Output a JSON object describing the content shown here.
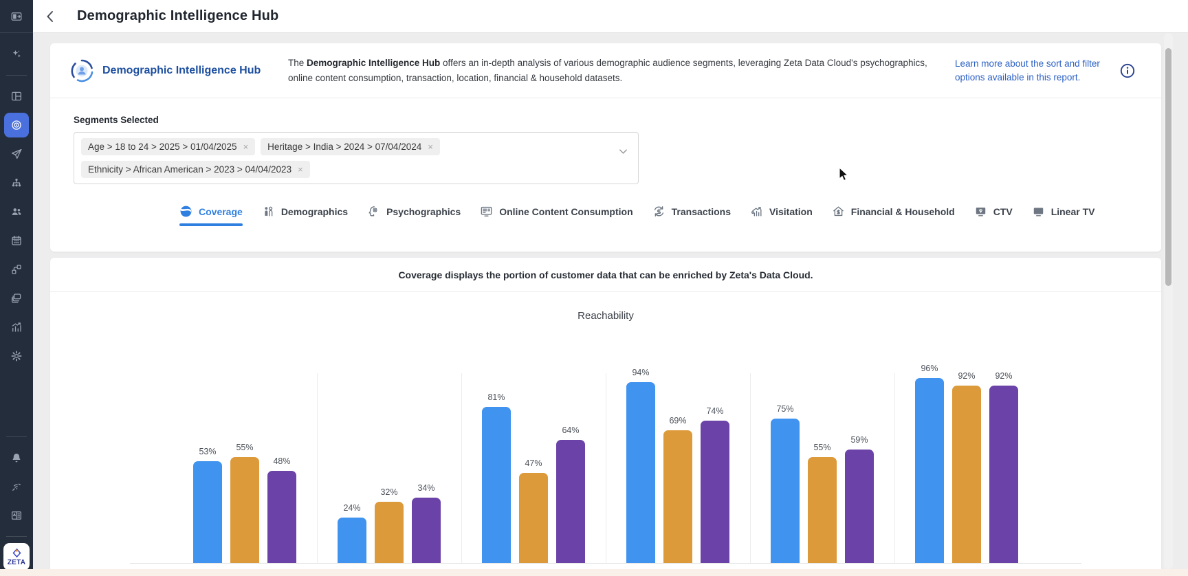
{
  "window": {
    "back_label": "back",
    "title": "Demographic Intelligence Hub"
  },
  "hub": {
    "logo_icon": "demographic-hub-logo-icon",
    "title": "Demographic Intelligence Hub",
    "description": {
      "prefix": "The ",
      "bold": "Demographic Intelligence Hub",
      "rest": " offers an in-depth analysis of various demographic audience segments, leveraging Zeta Data Cloud's psychographics, online content consumption, transaction, location, financial & household datasets."
    },
    "learn_more_link": "Learn more about the sort and filter options available in this report.",
    "info_icon": "info-icon"
  },
  "segments": {
    "label": "Segments Selected",
    "chips": [
      "Age > 18 to 24 > 2025 > 01/04/2025",
      "Heritage > India > 2024 > 07/04/2024",
      "Ethnicity > African American > 2023 > 04/04/2023"
    ],
    "remove_glyph": "×"
  },
  "tabs": [
    {
      "id": "coverage",
      "label": "Coverage",
      "icon": "coverage-icon",
      "active": true
    },
    {
      "id": "demographics",
      "label": "Demographics",
      "icon": "demographics-icon",
      "active": false
    },
    {
      "id": "psychographics",
      "label": "Psychographics",
      "icon": "psychographics-icon",
      "active": false
    },
    {
      "id": "online-content-consumption",
      "label": "Online Content Consumption",
      "icon": "online-content-icon",
      "active": false
    },
    {
      "id": "transactions",
      "label": "Transactions",
      "icon": "transactions-icon",
      "active": false
    },
    {
      "id": "visitation",
      "label": "Visitation",
      "icon": "visitation-icon",
      "active": false
    },
    {
      "id": "financial-household",
      "label": "Financial & Household",
      "icon": "financial-household-icon",
      "active": false
    },
    {
      "id": "ctv",
      "label": "CTV",
      "icon": "ctv-icon",
      "active": false
    },
    {
      "id": "linear-tv",
      "label": "Linear TV",
      "icon": "linear-tv-icon",
      "active": false
    }
  ],
  "coverage_note": "Coverage displays the portion of customer data that can be enriched by Zeta's Data Cloud.",
  "chart_data": {
    "type": "bar",
    "title": "Reachability",
    "group_count": 6,
    "categories": [
      "",
      "",
      "",
      "",
      "",
      ""
    ],
    "series": [
      {
        "name": "segment-1-blue",
        "color": "#4093ef",
        "values": [
          53,
          24,
          81,
          94,
          75,
          96
        ]
      },
      {
        "name": "segment-2-orange",
        "color": "#dd9a3a",
        "values": [
          55,
          32,
          47,
          69,
          55,
          92
        ]
      },
      {
        "name": "segment-3-purple",
        "color": "#6b42a8",
        "values": [
          48,
          34,
          64,
          74,
          59,
          92
        ]
      }
    ],
    "value_suffix": "%",
    "ylim": [
      0,
      100
    ],
    "grid": "vertical-group-separators",
    "legend_position": "none"
  },
  "sidebar": {
    "items": [
      {
        "name": "panel-toggle-icon",
        "section": "top"
      },
      {
        "name": "ai-sparkles-icon"
      },
      {
        "name": "divider"
      },
      {
        "name": "dashboard-icon"
      },
      {
        "name": "target-icon",
        "active": true
      },
      {
        "name": "send-icon"
      },
      {
        "name": "hierarchy-icon"
      },
      {
        "name": "audience-icon"
      },
      {
        "name": "calendar-icon"
      },
      {
        "name": "workflow-icon"
      },
      {
        "name": "layers-icon"
      },
      {
        "name": "analytics-icon"
      },
      {
        "name": "settings-gear-icon"
      },
      {
        "name": "spacer"
      },
      {
        "name": "divider"
      },
      {
        "name": "notifications-bell-icon"
      },
      {
        "name": "signal-icon"
      },
      {
        "name": "knowledge-book-icon"
      },
      {
        "name": "divider"
      }
    ],
    "logo_text": "ZETA"
  },
  "colors": {
    "accent_blue": "#2f7fe0",
    "sidebar_bg": "#232d3b",
    "active_nav_bg": "#4a70dd",
    "link_blue": "#2a5fc4",
    "brand_navy": "#1d4fa0"
  }
}
